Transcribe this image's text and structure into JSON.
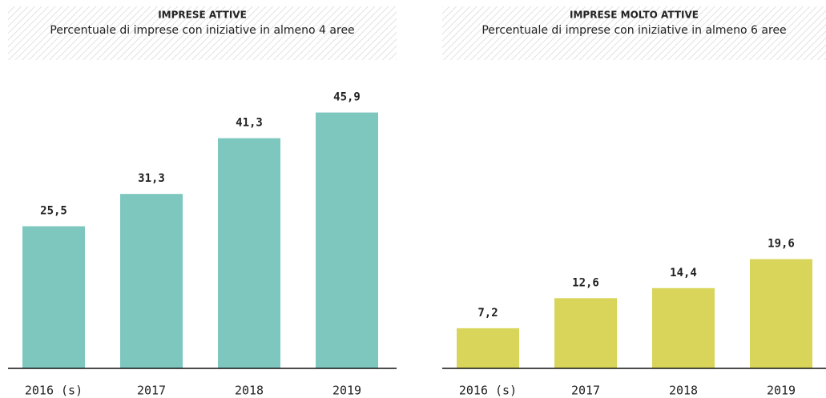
{
  "chart_data": [
    {
      "type": "bar",
      "title": "IMPRESE ATTIVE",
      "subtitle": "Percentuale di imprese con iniziative in almeno 4 aree",
      "categories": [
        "2016 (s)",
        "2017",
        "2018",
        "2019"
      ],
      "values": [
        25.5,
        31.3,
        41.3,
        45.9
      ],
      "value_labels": [
        "25,5",
        "31,3",
        "41,3",
        "45,9"
      ],
      "color": "#7dc7bf",
      "ylim": [
        0,
        50
      ]
    },
    {
      "type": "bar",
      "title": "IMPRESE MOLTO ATTIVE",
      "subtitle": "Percentuale di imprese con iniziative in almeno 6 aree",
      "categories": [
        "2016 (s)",
        "2017",
        "2018",
        "2019"
      ],
      "values": [
        7.2,
        12.6,
        14.4,
        19.6
      ],
      "value_labels": [
        "7,2",
        "12,6",
        "14,4",
        "19,6"
      ],
      "color": "#d8d55a",
      "ylim": [
        0,
        50
      ]
    }
  ]
}
